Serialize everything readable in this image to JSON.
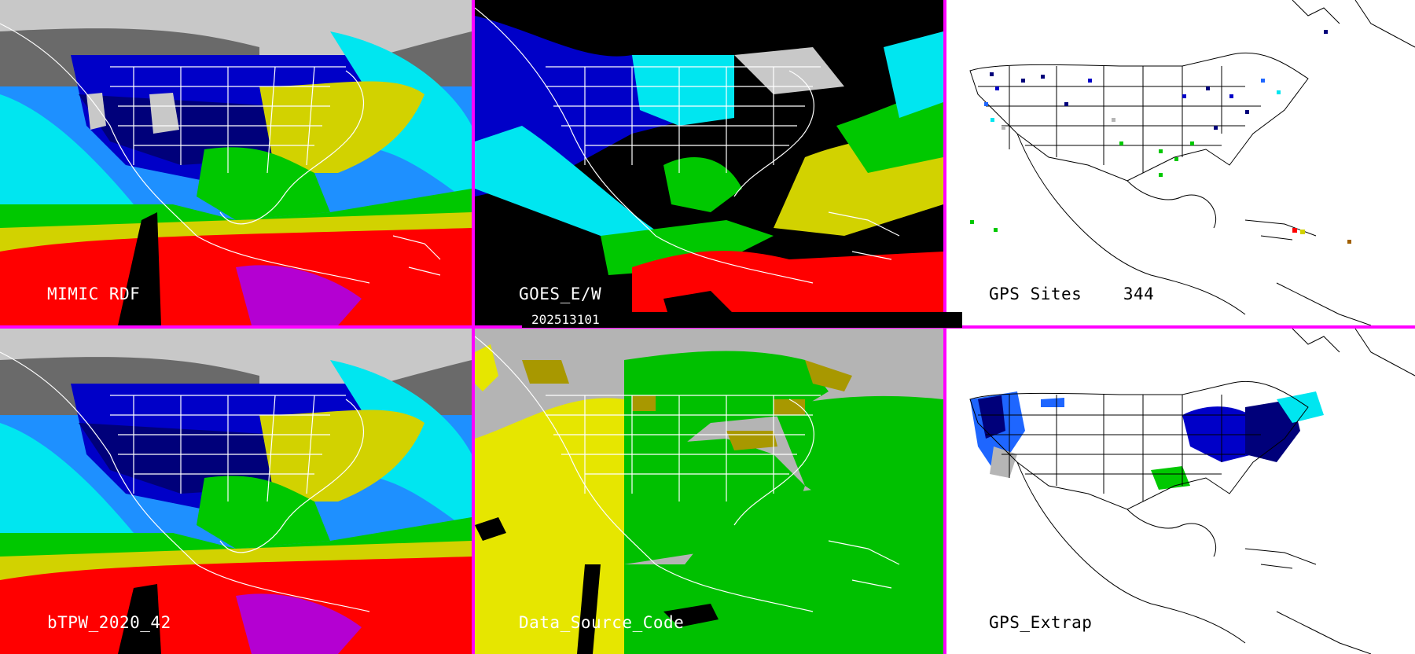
{
  "panels": [
    {
      "id": "p1",
      "label": "MIMIC RDF"
    },
    {
      "id": "p2",
      "label": "GOES_E/W"
    },
    {
      "id": "p3",
      "label": "GPS Sites    344"
    },
    {
      "id": "p4",
      "label": "bTPW_2020_42"
    },
    {
      "id": "p5",
      "label": "Data_Source_Code"
    },
    {
      "id": "p6",
      "label": "GPS_Extrap"
    }
  ],
  "timestamp": "202513101",
  "colors": {
    "divider": "#ff00ff",
    "tpw_scale": [
      "#000000",
      "#6a6a6a",
      "#b5b5b5",
      "#e0e0e0",
      "#00007a",
      "#0000c8",
      "#1e66ff",
      "#00e6f0",
      "#00c800",
      "#d2d200",
      "#ff0000",
      "#b400d2"
    ],
    "data_source": {
      "gray": "#b4b4b4",
      "yellow": "#e6e600",
      "green": "#00c000",
      "olive": "#a89800",
      "black": "#000000"
    }
  }
}
